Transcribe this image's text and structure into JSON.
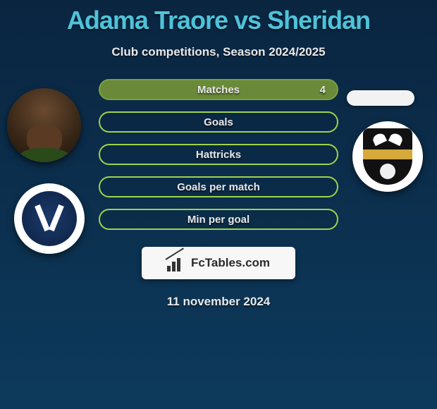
{
  "header": {
    "title": "Adama Traore vs Sheridan",
    "subtitle": "Club competitions, Season 2024/2025"
  },
  "stats": [
    {
      "label": "Matches",
      "value": "4",
      "filled": true
    },
    {
      "label": "Goals",
      "value": "",
      "filled": false
    },
    {
      "label": "Hattricks",
      "value": "",
      "filled": false
    },
    {
      "label": "Goals per match",
      "value": "",
      "filled": false
    },
    {
      "label": "Min per goal",
      "value": "",
      "filled": false
    }
  ],
  "brand": {
    "text": "FcTables.com"
  },
  "footer": {
    "date": "11 november 2024"
  },
  "colors": {
    "accent": "#4fc3d9",
    "pill_border": "#9fd34a",
    "pill_fill": "#6a8a3a",
    "bg_top": "#0a2540",
    "bg_bottom": "#0d3a5c"
  }
}
